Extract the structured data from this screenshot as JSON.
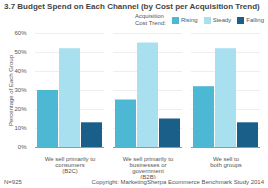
{
  "chart_data": {
    "type": "bar",
    "title": "3.7 Budget Spend on Each Channel (by Cost per Acquisition Trend)",
    "ylabel": "Percentage of Each Group",
    "legend_title": "Acquisition\nCost Trend:",
    "categories": [
      "We sell primarily to\nconsumers\n(B2C)",
      "We sell primarily to\nbusinesses or\ngovernment\n(B2B)",
      "We sell to\nboth groups"
    ],
    "series": [
      {
        "name": "Rising",
        "color": "#4db8d4",
        "values": [
          30,
          25,
          32
        ]
      },
      {
        "name": "Steady",
        "color": "#a8e0ef",
        "values": [
          52,
          55,
          52
        ]
      },
      {
        "name": "Falling",
        "color": "#1a5f8a",
        "values": [
          13,
          15,
          13
        ]
      }
    ],
    "ylim": [
      0,
      60
    ],
    "yticks": [
      {
        "value": 0,
        "label": "0%"
      },
      {
        "value": 10,
        "label": "10%"
      },
      {
        "value": 20,
        "label": "20%"
      },
      {
        "value": 30,
        "label": "30%"
      },
      {
        "value": 40,
        "label": "40%"
      },
      {
        "value": 50,
        "label": "50%"
      },
      {
        "value": 60,
        "label": "60%"
      }
    ],
    "grid": true,
    "legend": "upper right",
    "annotations": [
      "N=925",
      "Copyright: MarketingSherpa Ecommerce Benchmark Study 2014"
    ]
  }
}
